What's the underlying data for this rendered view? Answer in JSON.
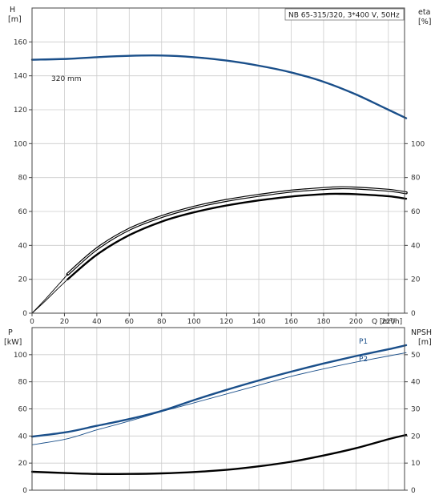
{
  "chart_data": [
    {
      "type": "line",
      "panel": "top",
      "info_box": "NB 65-315/320, 3*400 V, 50Hz",
      "xlabel": "Q [m³/h]",
      "xlim": [
        0,
        230
      ],
      "xticks": [
        0,
        20,
        40,
        60,
        80,
        100,
        120,
        140,
        160,
        180,
        200,
        220
      ],
      "left_axis": {
        "label_top": "H",
        "label_bottom": "[m]",
        "lim": [
          0,
          180
        ],
        "ticks": [
          0,
          20,
          40,
          60,
          80,
          100,
          120,
          140,
          160
        ]
      },
      "right_axis": {
        "label_top": "eta",
        "label_bottom": "[%]",
        "lim": [
          0,
          180
        ],
        "ticks": [
          0,
          20,
          40,
          60,
          80,
          100
        ]
      },
      "grid": true,
      "series": [
        {
          "name": "320 mm",
          "color": "#1a4f8a",
          "axis": "left",
          "style": "thick",
          "x": [
            0,
            22,
            40,
            60,
            80,
            100,
            120,
            140,
            160,
            180,
            200,
            220,
            231
          ],
          "y": [
            149.5,
            150,
            151,
            151.8,
            152,
            151,
            149,
            146,
            142,
            136.5,
            129,
            120,
            115
          ]
        },
        {
          "name": "",
          "color": "#1a4f8a",
          "axis": "left",
          "style": "thin",
          "x": [
            0,
            22
          ],
          "y": [
            149.3,
            150
          ]
        },
        {
          "name": "",
          "color": "#000000",
          "axis": "right",
          "style": "thick-double",
          "x": [
            22,
            40,
            60,
            80,
            100,
            120,
            140,
            160,
            180,
            190,
            200,
            220,
            231
          ],
          "y": [
            23,
            38,
            49.5,
            57,
            62.5,
            66.5,
            69.5,
            72,
            73.5,
            74,
            73.8,
            72.5,
            71
          ]
        },
        {
          "name": "",
          "color": "#000000",
          "axis": "left",
          "style": "thick",
          "x": [
            22,
            40,
            60,
            80,
            100,
            120,
            140,
            160,
            180,
            190,
            200,
            220,
            231
          ],
          "y": [
            20,
            34.5,
            46,
            54,
            59.5,
            63.5,
            66.5,
            68.8,
            70.2,
            70.4,
            70.2,
            69,
            67.5
          ]
        },
        {
          "name": "",
          "color": "#000000",
          "axis": "left",
          "style": "thin",
          "x": [
            0,
            8,
            16,
            22
          ],
          "y": [
            0,
            7,
            14.5,
            20
          ]
        },
        {
          "name": "",
          "color": "#000000",
          "axis": "right",
          "style": "thin",
          "x": [
            0,
            8,
            16,
            22
          ],
          "y": [
            0,
            8,
            16.5,
            23
          ]
        }
      ],
      "annotations": [
        {
          "text": "320 mm",
          "x": 23,
          "y": 152
        }
      ]
    },
    {
      "type": "line",
      "panel": "bottom",
      "xlim": [
        0,
        230
      ],
      "left_axis": {
        "label_top": "P",
        "label_bottom": "[kW]",
        "lim": [
          0,
          120
        ],
        "ticks": [
          0,
          20,
          40,
          60,
          80,
          100
        ]
      },
      "right_axis": {
        "label_top": "NPSH",
        "label_bottom": "[m]",
        "lim": [
          0,
          60
        ],
        "ticks": [
          0,
          10,
          20,
          30,
          40,
          50
        ]
      },
      "grid": true,
      "series": [
        {
          "name": "P1",
          "color": "#1a4f8a",
          "axis": "left",
          "style": "thick",
          "x": [
            0,
            22,
            40,
            60,
            80,
            100,
            120,
            140,
            160,
            180,
            200,
            220,
            231
          ],
          "y": [
            39.5,
            43,
            47.5,
            52.5,
            58.5,
            66.5,
            74,
            81,
            87.5,
            93.5,
            99,
            104,
            107
          ]
        },
        {
          "name": "P2",
          "color": "#1a4f8a",
          "axis": "left",
          "style": "thin",
          "x": [
            0,
            22,
            40,
            60,
            80,
            100,
            120,
            140,
            160,
            180,
            200,
            220,
            231
          ],
          "y": [
            33.5,
            38,
            44.5,
            51,
            58,
            64.5,
            71,
            77.5,
            84,
            89.5,
            94.5,
            99,
            101.5
          ]
        },
        {
          "name": "",
          "color": "#000000",
          "axis": "right",
          "style": "thick",
          "x": [
            0,
            22,
            40,
            60,
            80,
            100,
            120,
            140,
            160,
            180,
            200,
            220,
            231
          ],
          "y": [
            6.8,
            6.3,
            6,
            6,
            6.2,
            6.7,
            7.5,
            8.8,
            10.5,
            12.8,
            15.5,
            18.8,
            20.4
          ]
        }
      ]
    }
  ]
}
